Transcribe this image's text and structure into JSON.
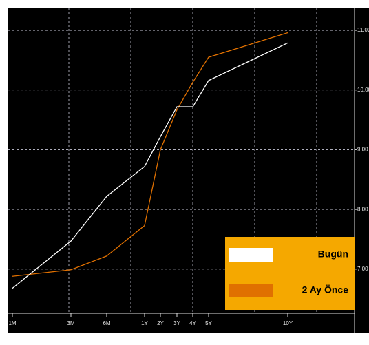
{
  "chart_data": {
    "type": "line",
    "categories": [
      "1M",
      "3M",
      "6M",
      "1Y",
      "2Y",
      "3Y",
      "4Y",
      "5Y",
      "10Y"
    ],
    "series": [
      {
        "name": "Bugün",
        "color": "#ffffff",
        "values": [
          6.68,
          7.47,
          8.22,
          8.72,
          9.22,
          9.72,
          9.72,
          10.16,
          10.79
        ]
      },
      {
        "name": "2 Ay Önce",
        "color": "#e07000",
        "values": [
          6.88,
          6.99,
          7.22,
          7.73,
          9.0,
          9.67,
          10.13,
          10.55,
          10.96
        ]
      }
    ],
    "ylim": [
      6.26,
      11.37
    ],
    "yticks": [
      {
        "value": 7,
        "label": "7.00"
      },
      {
        "value": 8,
        "label": "8.00"
      },
      {
        "value": 9,
        "label": "9.00"
      },
      {
        "value": 10,
        "label": "10.00"
      },
      {
        "value": 11,
        "label": "11.00"
      }
    ],
    "grid": true,
    "legend": "lower right"
  }
}
